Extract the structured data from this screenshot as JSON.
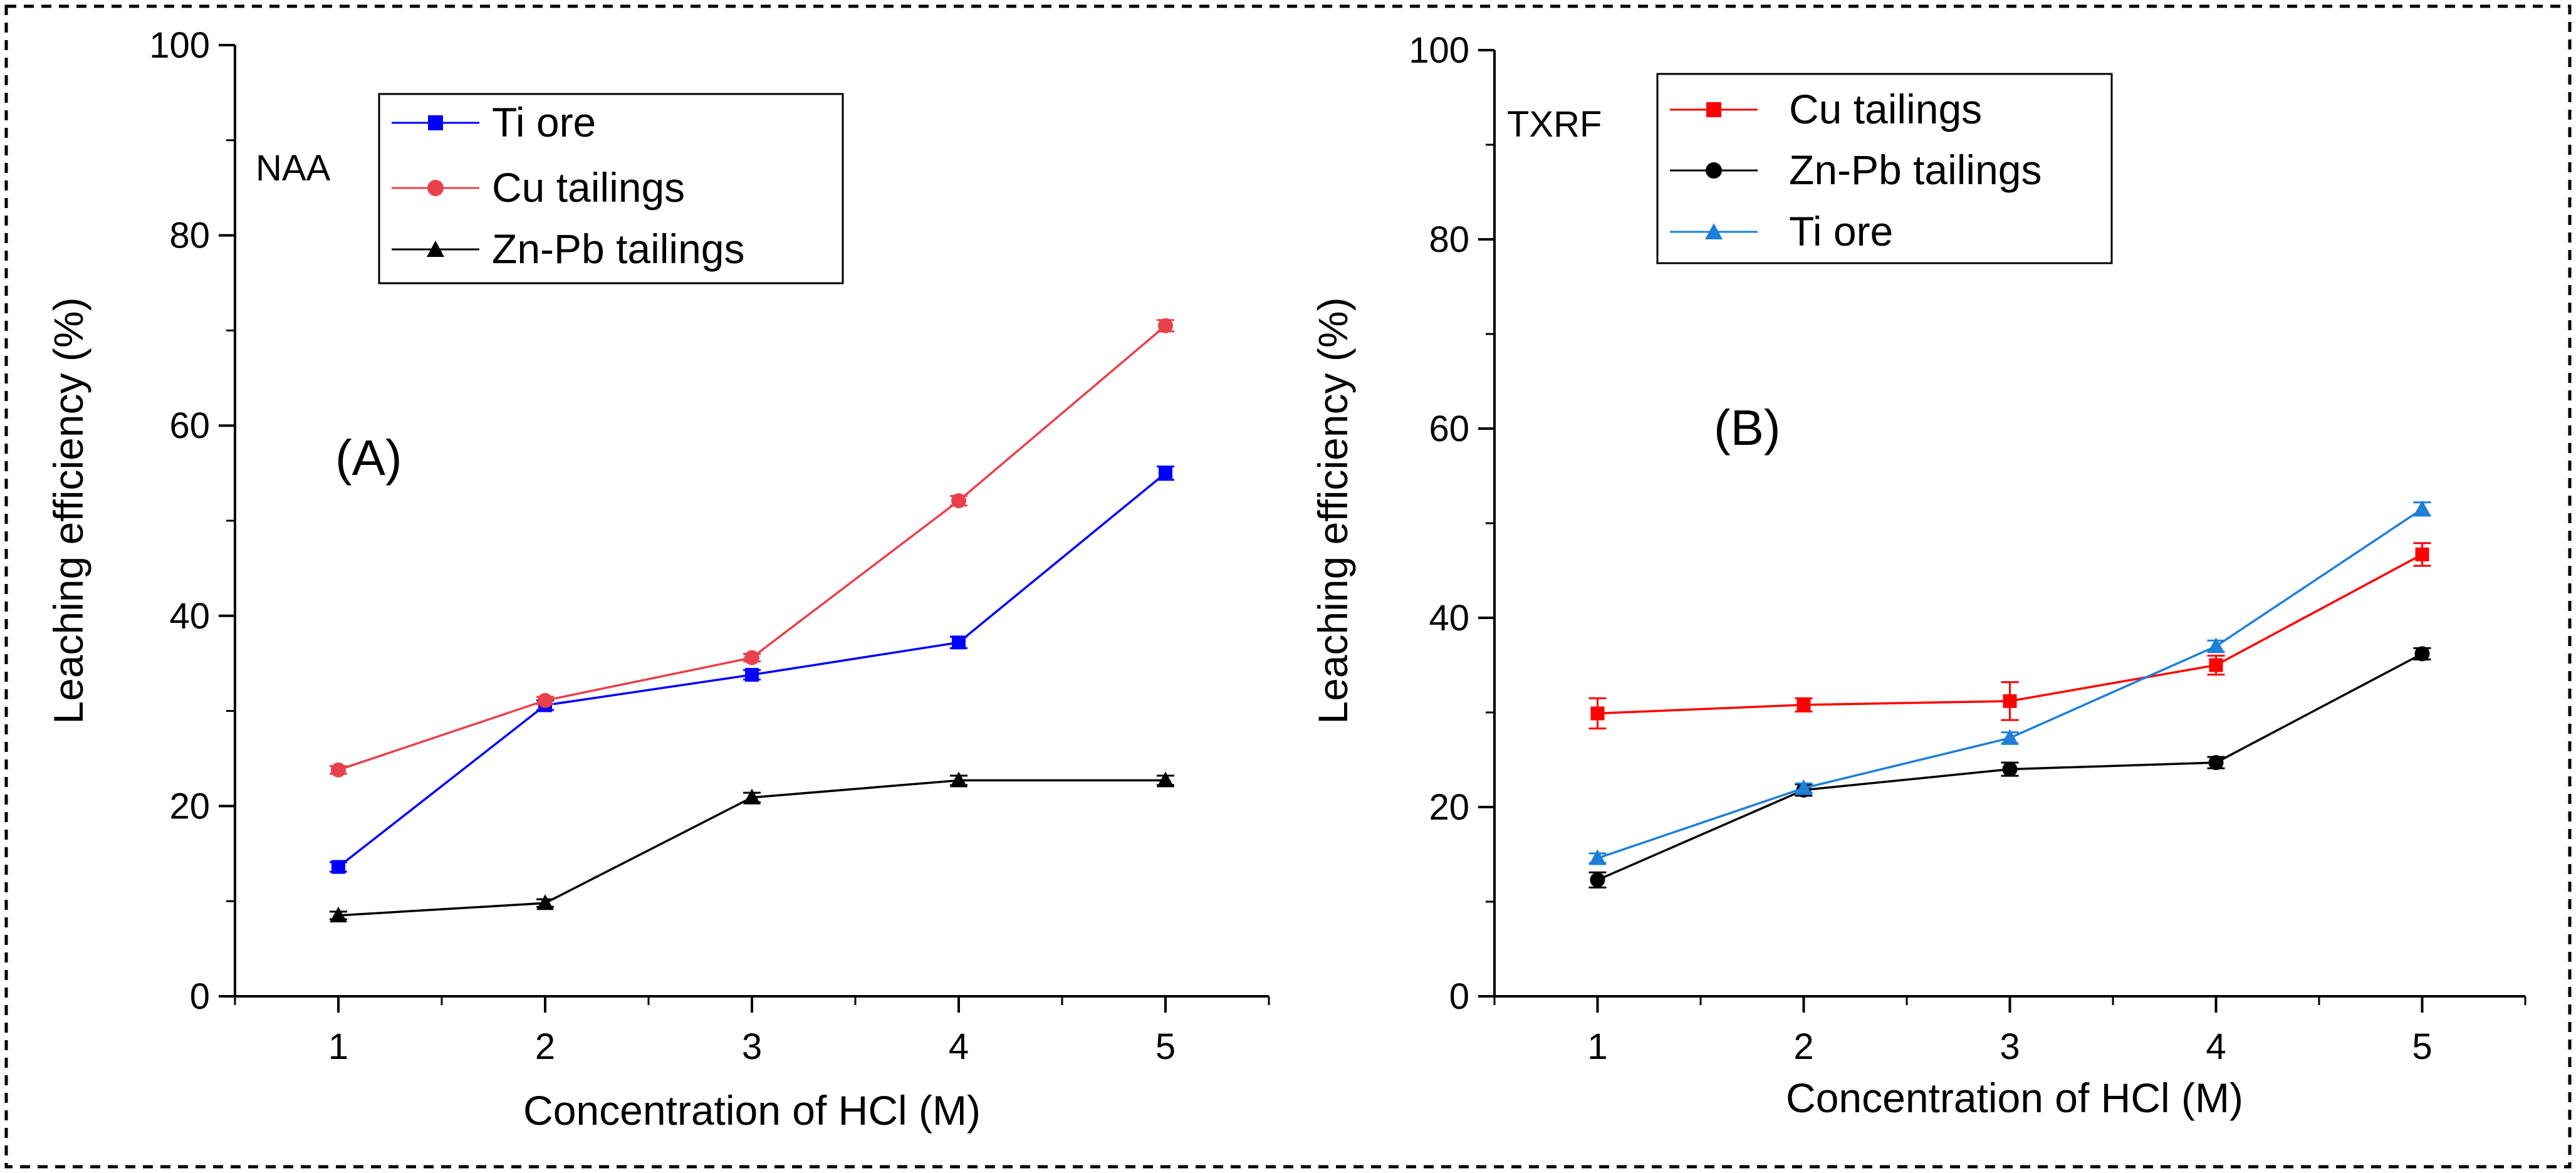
{
  "figure": {
    "border_color": "#000000"
  },
  "chart_data": [
    {
      "type": "line",
      "panel_label": "(A)",
      "method_label": "NAA",
      "xlabel": "Concentration of HCl (M)",
      "ylabel": "Leaching efficiency (%)",
      "x": [
        1,
        2,
        3,
        4,
        5
      ],
      "x_ticks": [
        "1",
        "2",
        "3",
        "4",
        "5"
      ],
      "xlim": [
        0.5,
        5.5
      ],
      "ylim": [
        0,
        100
      ],
      "y_ticks": [
        "0",
        "20",
        "40",
        "60",
        "80",
        "100"
      ],
      "legend_position": "top-center",
      "series": [
        {
          "name": "Ti ore",
          "color": "#0000ff",
          "marker": "square",
          "values": [
            13.6,
            30.6,
            33.8,
            37.2,
            55.0
          ],
          "errors": [
            0.5,
            0.5,
            0.5,
            0.6,
            0.7
          ]
        },
        {
          "name": "Cu tailings",
          "color": "#e8414b",
          "marker": "circle",
          "values": [
            23.8,
            31.1,
            35.6,
            52.1,
            70.5
          ],
          "errors": [
            0.4,
            0.4,
            0.4,
            0.5,
            0.6
          ]
        },
        {
          "name": "Zn-Pb  tailings",
          "color": "#000000",
          "marker": "triangle",
          "values": [
            8.5,
            9.8,
            20.9,
            22.7,
            22.7
          ],
          "errors": [
            0.4,
            0.4,
            0.5,
            0.5,
            0.5
          ]
        }
      ]
    },
    {
      "type": "line",
      "panel_label": "(B)",
      "method_label": "TXRF",
      "xlabel": "Concentration of HCl (M)",
      "ylabel": "Leaching efficiency (%)",
      "x": [
        1,
        2,
        3,
        4,
        5
      ],
      "x_ticks": [
        "1",
        "2",
        "3",
        "4",
        "5"
      ],
      "xlim": [
        0.5,
        5.5
      ],
      "ylim": [
        0,
        100
      ],
      "y_ticks": [
        "0",
        "20",
        "40",
        "60",
        "80",
        "100"
      ],
      "legend_position": "top-left",
      "series": [
        {
          "name": "Cu tailings",
          "color": "#ff0000",
          "marker": "square",
          "values": [
            29.9,
            30.8,
            31.2,
            35.0,
            46.7
          ],
          "errors": [
            1.6,
            0.7,
            2.0,
            1.0,
            1.2
          ]
        },
        {
          "name": "Zn-Pb  tailings",
          "color": "#000000",
          "marker": "circle",
          "values": [
            12.3,
            21.8,
            24.0,
            24.7,
            36.2
          ],
          "errors": [
            0.8,
            0.6,
            0.7,
            0.6,
            0.6
          ]
        },
        {
          "name": "Ti ore",
          "color": "#1e7fd8",
          "marker": "triangle",
          "values": [
            14.6,
            22.0,
            27.3,
            37.0,
            51.5
          ],
          "errors": [
            0.5,
            0.5,
            0.6,
            0.6,
            0.7
          ]
        }
      ]
    }
  ]
}
